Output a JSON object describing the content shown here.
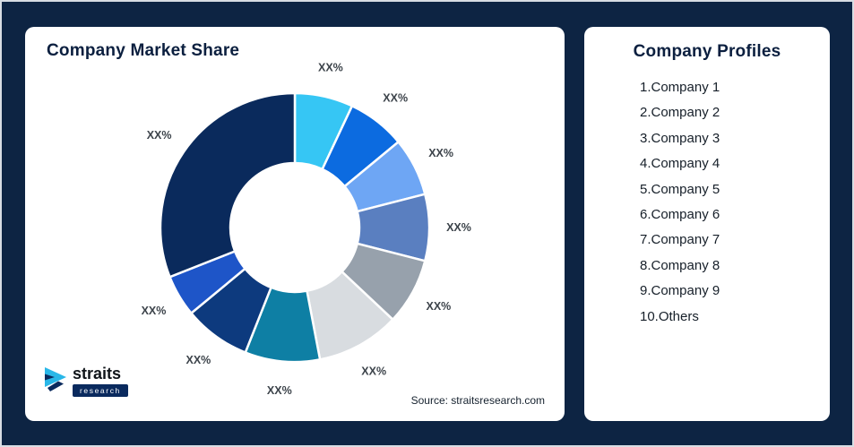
{
  "page": {
    "background": "#0D2443"
  },
  "left_card": {
    "title": "Company Market Share",
    "source": "Source: straitsresearch.com",
    "logo_name": "straits",
    "logo_sub": "research"
  },
  "right_card": {
    "title": "Company Profiles",
    "items": [
      "1.Company 1",
      "2.Company 2",
      "3.Company 3",
      "4.Company 4",
      "5.Company 5",
      "6.Company 6",
      "7.Company 7",
      "8.Company 8",
      "9.Company 9",
      "10.Others"
    ]
  },
  "chart_data": {
    "type": "pie",
    "subtype": "donut",
    "title": "Company Market Share",
    "labels": [
      "Company 1",
      "Company 2",
      "Company 3",
      "Company 4",
      "Company 5",
      "Company 6",
      "Company 7",
      "Company 8",
      "Company 9",
      "Others"
    ],
    "value_labels": [
      "XX%",
      "XX%",
      "XX%",
      "XX%",
      "XX%",
      "XX%",
      "XX%",
      "XX%",
      "XX%",
      "XX%"
    ],
    "values": [
      7,
      7,
      7,
      8,
      8,
      10,
      9,
      8,
      5,
      31
    ],
    "values_note": "percent shares estimated from arc angles; chart displays placeholder XX% labels",
    "colors": [
      "#36C6F4",
      "#0C6BE0",
      "#6EA6F4",
      "#5A7FC0",
      "#97A1AC",
      "#D8DCE0",
      "#0E7FA4",
      "#0D3A7E",
      "#1E55C8",
      "#0A2A5C"
    ],
    "start_angle": "12 o'clock",
    "direction": "clockwise",
    "legend_position": "none",
    "source": "Source: straitsresearch.com"
  }
}
